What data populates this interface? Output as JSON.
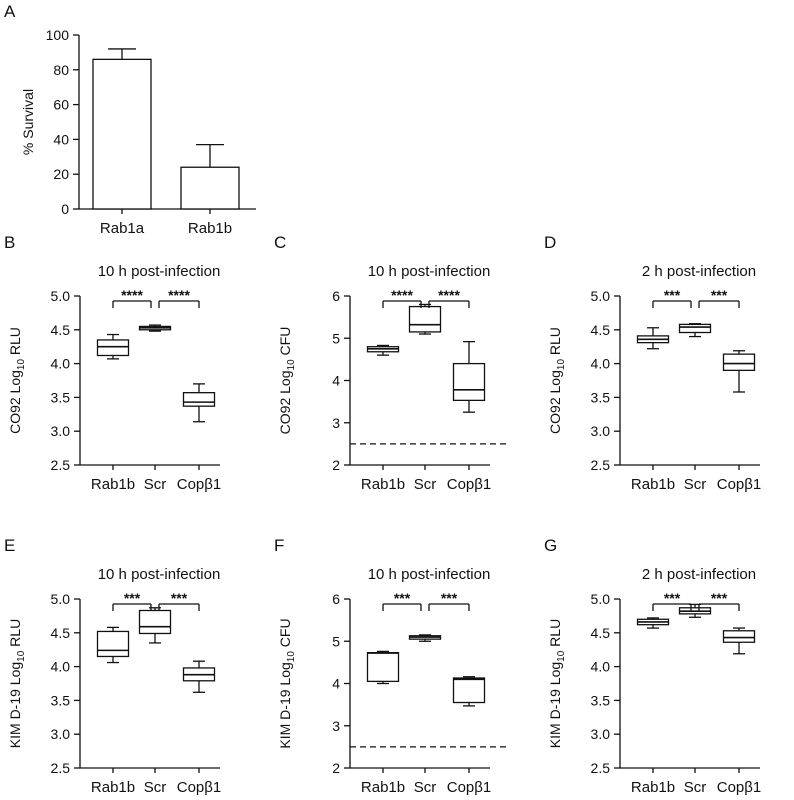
{
  "chart_data": [
    {
      "panel": "A",
      "type": "bar",
      "title": "",
      "xlabel": "",
      "ylabel": "% Survival",
      "ylim": [
        0,
        100
      ],
      "yticks": [
        "0",
        "20",
        "40",
        "60",
        "80",
        "100"
      ],
      "categories": [
        "Rab1a",
        "Rab1b"
      ],
      "values": [
        86,
        24
      ],
      "errors": [
        6,
        13
      ]
    },
    {
      "panel": "B",
      "type": "box",
      "title": "10 h post-infection",
      "ylabel": "CO92 Log10 RLU",
      "ylim": [
        2.5,
        5.0
      ],
      "yticks": [
        "2.5",
        "3.0",
        "3.5",
        "4.0",
        "4.5",
        "5.0"
      ],
      "categories": [
        "Rab1b",
        "Scr",
        "Copβ1"
      ],
      "boxes": [
        {
          "min": 4.07,
          "q1": 4.12,
          "median": 4.25,
          "q3": 4.35,
          "max": 4.43
        },
        {
          "min": 4.48,
          "q1": 4.5,
          "median": 4.53,
          "q3": 4.55,
          "max": 4.57
        },
        {
          "min": 3.14,
          "q1": 3.37,
          "median": 3.43,
          "q3": 3.57,
          "max": 3.7
        }
      ],
      "significance": [
        {
          "from": 0,
          "to": 1,
          "label": "****"
        },
        {
          "from": 1,
          "to": 2,
          "label": "****"
        }
      ]
    },
    {
      "panel": "C",
      "type": "box",
      "title": "10 h post-infection",
      "ylabel": "CO92 Log10 CFU",
      "ylim": [
        2,
        6
      ],
      "yticks": [
        "2",
        "3",
        "4",
        "5",
        "6"
      ],
      "categories": [
        "Rab1b",
        "Scr",
        "Copβ1"
      ],
      "boxes": [
        {
          "min": 4.6,
          "q1": 4.68,
          "median": 4.75,
          "q3": 4.8,
          "max": 4.83
        },
        {
          "min": 5.1,
          "q1": 5.15,
          "median": 5.32,
          "q3": 5.75,
          "max": 5.8
        },
        {
          "min": 3.25,
          "q1": 3.53,
          "median": 3.78,
          "q3": 4.4,
          "max": 4.92
        }
      ],
      "reference_line": 2.5,
      "significance": [
        {
          "from": 0,
          "to": 1,
          "label": "****"
        },
        {
          "from": 1,
          "to": 2,
          "label": "****"
        }
      ]
    },
    {
      "panel": "D",
      "type": "box",
      "title": "2 h post-infection",
      "ylabel": "CO92 Log10 RLU",
      "ylim": [
        2.5,
        5.0
      ],
      "yticks": [
        "2.5",
        "3.0",
        "3.5",
        "4.0",
        "4.5",
        "5.0"
      ],
      "categories": [
        "Rab1b",
        "Scr",
        "Copβ1"
      ],
      "boxes": [
        {
          "min": 4.22,
          "q1": 4.31,
          "median": 4.36,
          "q3": 4.41,
          "max": 4.53
        },
        {
          "min": 4.4,
          "q1": 4.46,
          "median": 4.54,
          "q3": 4.58,
          "max": 4.59
        },
        {
          "min": 3.58,
          "q1": 3.9,
          "median": 4.0,
          "q3": 4.14,
          "max": 4.19
        }
      ],
      "significance": [
        {
          "from": 0,
          "to": 1,
          "label": "***"
        },
        {
          "from": 1,
          "to": 2,
          "label": "***"
        }
      ]
    },
    {
      "panel": "E",
      "type": "box",
      "title": "10 h post-infection",
      "ylabel": "KIM D-19 Log10 RLU",
      "ylim": [
        2.5,
        5.0
      ],
      "yticks": [
        "2.5",
        "3.0",
        "3.5",
        "4.0",
        "4.5",
        "5.0"
      ],
      "categories": [
        "Rab1b",
        "Scr",
        "Copβ1"
      ],
      "boxes": [
        {
          "min": 4.06,
          "q1": 4.15,
          "median": 4.24,
          "q3": 4.52,
          "max": 4.58
        },
        {
          "min": 4.35,
          "q1": 4.49,
          "median": 4.59,
          "q3": 4.83,
          "max": 4.87
        },
        {
          "min": 3.62,
          "q1": 3.79,
          "median": 3.88,
          "q3": 3.98,
          "max": 4.08
        }
      ],
      "significance": [
        {
          "from": 0,
          "to": 1,
          "label": "***"
        },
        {
          "from": 1,
          "to": 2,
          "label": "***"
        }
      ]
    },
    {
      "panel": "F",
      "type": "box",
      "title": "10 h post-infection",
      "ylabel": "KIM D-19 Log10 CFU",
      "ylim": [
        2,
        6
      ],
      "yticks": [
        "2",
        "3",
        "4",
        "5",
        "6"
      ],
      "categories": [
        "Rab1b",
        "Scr",
        "Copβ1"
      ],
      "boxes": [
        {
          "min": 4.0,
          "q1": 4.05,
          "median": 4.72,
          "q3": 4.73,
          "max": 4.76
        },
        {
          "min": 5.0,
          "q1": 5.05,
          "median": 5.1,
          "q3": 5.13,
          "max": 5.15
        },
        {
          "min": 3.47,
          "q1": 3.55,
          "median": 4.1,
          "q3": 4.13,
          "max": 4.16
        }
      ],
      "reference_line": 2.5,
      "significance": [
        {
          "from": 0,
          "to": 1,
          "label": "***"
        },
        {
          "from": 1,
          "to": 2,
          "label": "***"
        }
      ]
    },
    {
      "panel": "G",
      "type": "box",
      "title": "2 h post-infection",
      "ylabel": "KIM D-19 Log10 RLU",
      "ylim": [
        2.5,
        5.0
      ],
      "yticks": [
        "2.5",
        "3.0",
        "3.5",
        "4.0",
        "4.5",
        "5.0"
      ],
      "categories": [
        "Rab1b",
        "Scr",
        "Copβ1"
      ],
      "boxes": [
        {
          "min": 4.57,
          "q1": 4.62,
          "median": 4.66,
          "q3": 4.7,
          "max": 4.72
        },
        {
          "min": 4.73,
          "q1": 4.78,
          "median": 4.82,
          "q3": 4.87,
          "max": 4.92
        },
        {
          "min": 4.19,
          "q1": 4.36,
          "median": 4.43,
          "q3": 4.53,
          "max": 4.57
        }
      ],
      "significance": [
        {
          "from": 0,
          "to": 1,
          "label": "***"
        },
        {
          "from": 1,
          "to": 2,
          "label": "***"
        }
      ]
    }
  ]
}
